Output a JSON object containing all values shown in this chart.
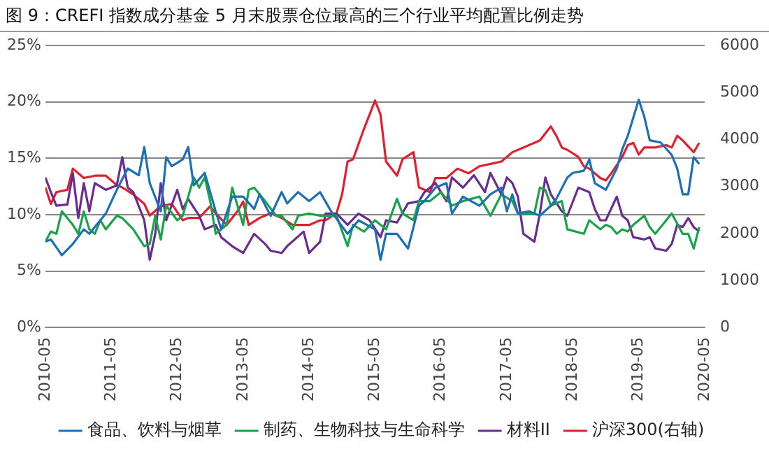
{
  "chart_data": {
    "type": "line",
    "title": "图 9：CREFI 指数成分基金 5 月末股票仓位最高的三个行业平均配置比例走势",
    "xlim": [
      "2010-05",
      "2020-05"
    ],
    "xticks": [
      "2010-05",
      "2011-05",
      "2012-05",
      "2013-05",
      "2014-05",
      "2015-05",
      "2016-05",
      "2017-05",
      "2018-05",
      "2019-05",
      "2020-05"
    ],
    "ylim": [
      0,
      25
    ],
    "yticks": [
      {
        "value": 0,
        "label": "0%"
      },
      {
        "value": 5,
        "label": "5%"
      },
      {
        "value": 10,
        "label": "10%"
      },
      {
        "value": 15,
        "label": "15%"
      },
      {
        "value": 20,
        "label": "20%"
      },
      {
        "value": 25,
        "label": "25%"
      }
    ],
    "y2lim": [
      0,
      6000
    ],
    "y2ticks": [
      0,
      1000,
      2000,
      3000,
      4000,
      5000,
      6000
    ],
    "grid": "y",
    "legend": "bottom",
    "marker": "none",
    "line_style": "solid",
    "series": [
      {
        "name": "食品、饮料与烟草",
        "color": "#1f6fb4",
        "x": [
          "2010-05",
          "2010-06",
          "2010-08",
          "2010-10",
          "2010-12",
          "2011-01",
          "2011-03",
          "2011-04",
          "2011-06",
          "2011-08",
          "2011-10",
          "2011-11",
          "2011-12",
          "2012-02",
          "2012-03",
          "2012-04",
          "2012-06",
          "2012-07",
          "2012-08",
          "2012-10",
          "2012-12",
          "2013-01",
          "2013-03",
          "2013-05",
          "2013-07",
          "2013-08",
          "2013-10",
          "2013-12",
          "2014-01",
          "2014-03",
          "2014-05",
          "2014-07",
          "2014-09",
          "2014-12",
          "2015-02",
          "2015-05",
          "2015-06",
          "2015-07",
          "2015-09",
          "2015-11",
          "2016-01",
          "2016-02",
          "2016-04",
          "2016-06",
          "2016-07",
          "2016-09",
          "2016-12",
          "2017-02",
          "2017-04",
          "2017-05",
          "2017-06",
          "2017-07",
          "2017-09",
          "2017-11",
          "2018-01",
          "2018-02",
          "2018-04",
          "2018-05",
          "2018-07",
          "2018-08",
          "2018-09",
          "2018-11",
          "2019-01",
          "2019-02",
          "2019-03",
          "2019-05",
          "2019-06",
          "2019-07",
          "2019-09",
          "2019-11",
          "2019-12",
          "2020-01",
          "2020-02",
          "2020-03",
          "2020-04"
        ],
        "values": [
          7.6,
          7.8,
          6.4,
          7.4,
          8.7,
          8.3,
          9.5,
          10.1,
          12.2,
          14.1,
          13.5,
          16.0,
          12.8,
          10.3,
          15.1,
          14.3,
          14.9,
          16.0,
          12.6,
          13.7,
          10.3,
          8.7,
          11.6,
          11.6,
          10.5,
          11.8,
          9.9,
          12,
          11,
          12,
          11.2,
          12,
          10.3,
          8.3,
          9.5,
          8.7,
          6,
          8.3,
          8.3,
          7,
          10.8,
          11.2,
          12.4,
          12.8,
          10.1,
          11.6,
          10.8,
          11.8,
          12.4,
          10.3,
          11.8,
          10.1,
          10.3,
          9.9,
          10.8,
          11.4,
          13.3,
          13.7,
          13.9,
          14.9,
          12.8,
          12.2,
          14.1,
          15.8,
          17,
          20.2,
          18.7,
          16.6,
          16.4,
          15.3,
          14.1,
          11.8,
          11.8,
          15.1,
          14.5
        ]
      },
      {
        "name": "制药、生物科技与生命科学",
        "color": "#1aa34a",
        "x": [
          "2010-05",
          "2010-06",
          "2010-07",
          "2010-08",
          "2010-10",
          "2010-11",
          "2010-12",
          "2011-01",
          "2011-02",
          "2011-03",
          "2011-04",
          "2011-06",
          "2011-07",
          "2011-09",
          "2011-11",
          "2011-12",
          "2012-01",
          "2012-02",
          "2012-03",
          "2012-05",
          "2012-06",
          "2012-08",
          "2012-09",
          "2012-10",
          "2012-11",
          "2012-12",
          "2013-02",
          "2013-03",
          "2013-05",
          "2013-06",
          "2013-07",
          "2013-09",
          "2013-11",
          "2013-12",
          "2014-02",
          "2014-03",
          "2014-05",
          "2014-07",
          "2014-10",
          "2014-12",
          "2015-01",
          "2015-03",
          "2015-05",
          "2015-07",
          "2015-09",
          "2015-10",
          "2015-12",
          "2016-01",
          "2016-03",
          "2016-05",
          "2016-07",
          "2016-09",
          "2016-12",
          "2017-02",
          "2017-04",
          "2017-06",
          "2017-07",
          "2017-08",
          "2017-10",
          "2017-11",
          "2017-12",
          "2018-01",
          "2018-03",
          "2018-04",
          "2018-07",
          "2018-08",
          "2018-10",
          "2018-11",
          "2018-12",
          "2019-01",
          "2019-02",
          "2019-03",
          "2019-04",
          "2019-05",
          "2019-06",
          "2019-07",
          "2019-08",
          "2019-10",
          "2019-11",
          "2020-01",
          "2020-02",
          "2020-03",
          "2020-04"
        ],
        "values": [
          7.6,
          8.5,
          8.3,
          10.3,
          9.1,
          8.3,
          10.3,
          8.7,
          8.3,
          9.5,
          8.7,
          9.9,
          9.7,
          8.7,
          7.2,
          7.4,
          9.9,
          7.8,
          10.8,
          9.5,
          9.9,
          13.3,
          12.4,
          13.3,
          11.2,
          8.3,
          9.1,
          12.4,
          9.1,
          12.2,
          12.4,
          11.2,
          9.9,
          9.9,
          8.7,
          9.9,
          10.1,
          9.9,
          9.9,
          7.2,
          9.1,
          8.5,
          9.5,
          8.7,
          11.4,
          10.1,
          9.5,
          11.2,
          11.2,
          12,
          10.8,
          11.2,
          11.6,
          9.9,
          11.8,
          11.2,
          10.1,
          10.1,
          10.1,
          12.4,
          12.2,
          10.8,
          11.2,
          8.7,
          8.3,
          9.5,
          8.7,
          9.1,
          8.9,
          8.3,
          8.7,
          8.5,
          9.1,
          9.5,
          9.9,
          8.9,
          8.3,
          9.5,
          10.1,
          8.3,
          8.3,
          7.0,
          8.9
        ]
      },
      {
        "name": "材料II",
        "color": "#6a2c91",
        "x": [
          "2010-05",
          "2010-06",
          "2010-07",
          "2010-09",
          "2010-10",
          "2010-11",
          "2010-12",
          "2011-01",
          "2011-02",
          "2011-04",
          "2011-06",
          "2011-07",
          "2011-08",
          "2011-09",
          "2011-11",
          "2011-12",
          "2012-01",
          "2012-02",
          "2012-03",
          "2012-05",
          "2012-06",
          "2012-07",
          "2012-09",
          "2012-10",
          "2012-12",
          "2013-01",
          "2013-03",
          "2013-05",
          "2013-07",
          "2013-09",
          "2013-10",
          "2013-12",
          "2014-01",
          "2014-04",
          "2014-05",
          "2014-07",
          "2014-08",
          "2014-10",
          "2014-12",
          "2015-02",
          "2015-04",
          "2015-06",
          "2015-07",
          "2015-09",
          "2015-11",
          "2016-01",
          "2016-02",
          "2016-04",
          "2016-06",
          "2016-07",
          "2016-09",
          "2016-11",
          "2017-01",
          "2017-02",
          "2017-04",
          "2017-05",
          "2017-06",
          "2017-07",
          "2017-08",
          "2017-10",
          "2017-11",
          "2017-12",
          "2018-01",
          "2018-03",
          "2018-04",
          "2018-06",
          "2018-08",
          "2018-09",
          "2018-10",
          "2018-11",
          "2019-01",
          "2019-02",
          "2019-03",
          "2019-04",
          "2019-06",
          "2019-07",
          "2019-08",
          "2019-10",
          "2019-11",
          "2019-12",
          "2020-01",
          "2020-02",
          "2020-03",
          "2020-04"
        ],
        "values": [
          13.3,
          12,
          10.8,
          10.9,
          13.7,
          9.7,
          12.8,
          10.3,
          12.8,
          12.2,
          12.6,
          15.1,
          12.4,
          12,
          9.5,
          6,
          8.3,
          12.8,
          9.5,
          12.2,
          10.5,
          11.4,
          9.9,
          8.7,
          9.1,
          8.0,
          7.2,
          6.6,
          8.3,
          7.4,
          6.8,
          6.6,
          7.2,
          8.5,
          6.6,
          7.6,
          10.1,
          10.1,
          9.1,
          10.1,
          9.5,
          8.0,
          9.5,
          9.3,
          11,
          11.2,
          12,
          12.8,
          11.2,
          13.3,
          12.4,
          13.5,
          12,
          13.7,
          11.8,
          13.3,
          12.8,
          11.6,
          8.3,
          7.6,
          10.1,
          13.3,
          11.8,
          10.3,
          9.9,
          12.4,
          12,
          10.5,
          9.5,
          9.5,
          11.6,
          9.9,
          9.5,
          8.0,
          7.8,
          8.0,
          7.0,
          6.8,
          7.4,
          9.1,
          8.9,
          9.7,
          8.9,
          8.5
        ]
      },
      {
        "name": "沪深300(右轴)",
        "color": "#e0202e",
        "axis": "y2",
        "x": [
          "2010-05",
          "2010-06",
          "2010-07",
          "2010-09",
          "2010-10",
          "2010-12",
          "2011-02",
          "2011-04",
          "2011-06",
          "2011-07",
          "2011-09",
          "2011-11",
          "2011-12",
          "2012-02",
          "2012-04",
          "2012-06",
          "2012-07",
          "2012-09",
          "2012-11",
          "2012-12",
          "2013-02",
          "2013-04",
          "2013-05",
          "2013-06",
          "2013-08",
          "2013-10",
          "2013-12",
          "2014-02",
          "2014-05",
          "2014-07",
          "2014-08",
          "2014-10",
          "2014-11",
          "2014-12",
          "2015-01",
          "2015-03",
          "2015-05",
          "2015-06",
          "2015-07",
          "2015-09",
          "2015-10",
          "2015-12",
          "2016-01",
          "2016-03",
          "2016-04",
          "2016-06",
          "2016-08",
          "2016-10",
          "2016-12",
          "2017-02",
          "2017-04",
          "2017-06",
          "2017-08",
          "2017-10",
          "2017-11",
          "2018-01",
          "2018-02",
          "2018-03",
          "2018-04",
          "2018-06",
          "2018-07",
          "2018-08",
          "2018-10",
          "2018-11",
          "2018-12",
          "2019-02",
          "2019-03",
          "2019-04",
          "2019-05",
          "2019-06",
          "2019-08",
          "2019-10",
          "2019-11",
          "2019-12",
          "2020-01",
          "2020-03",
          "2020-04"
        ],
        "values": [
          2980,
          2630,
          2880,
          2930,
          3380,
          3180,
          3230,
          3230,
          3030,
          2980,
          2830,
          2630,
          2380,
          2580,
          2630,
          2280,
          2330,
          2330,
          2580,
          2430,
          2180,
          2480,
          2680,
          2180,
          2330,
          2430,
          2330,
          2180,
          2180,
          2280,
          2280,
          2430,
          2830,
          3530,
          3580,
          4230,
          4830,
          4530,
          3530,
          3230,
          3580,
          3730,
          2980,
          2880,
          3180,
          3180,
          3380,
          3280,
          3430,
          3480,
          3530,
          3730,
          3830,
          3930,
          3980,
          4280,
          4080,
          3830,
          3780,
          3630,
          3430,
          3380,
          3180,
          3130,
          3280,
          3630,
          3880,
          3930,
          3680,
          3830,
          3830,
          3880,
          3830,
          4080,
          3980,
          3730,
          3930
        ]
      }
    ]
  }
}
